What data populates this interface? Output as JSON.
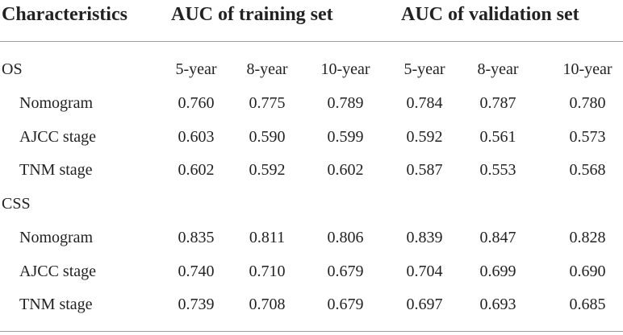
{
  "header": {
    "characteristics": "Characteristics",
    "training": "AUC of training set",
    "validation": "AUC of validation set"
  },
  "sections": [
    {
      "label": "OS",
      "years": [
        "5-year",
        "8-year",
        "10-year",
        "5-year",
        "8-year",
        "10-year"
      ],
      "rows": [
        {
          "label": "Nomogram",
          "values": [
            "0.760",
            "0.775",
            "0.789",
            "0.784",
            "0.787",
            "0.780"
          ]
        },
        {
          "label": "AJCC stage",
          "values": [
            "0.603",
            "0.590",
            "0.599",
            "0.592",
            "0.561",
            "0.573"
          ]
        },
        {
          "label": "TNM stage",
          "values": [
            "0.602",
            "0.592",
            "0.602",
            "0.587",
            "0.553",
            "0.568"
          ]
        }
      ]
    },
    {
      "label": "CSS",
      "rows": [
        {
          "label": "Nomogram",
          "values": [
            "0.835",
            "0.811",
            "0.806",
            "0.839",
            "0.847",
            "0.828"
          ]
        },
        {
          "label": "AJCC stage",
          "values": [
            "0.740",
            "0.710",
            "0.679",
            "0.704",
            "0.699",
            "0.690"
          ]
        },
        {
          "label": "TNM stage",
          "values": [
            "0.739",
            "0.708",
            "0.679",
            "0.697",
            "0.693",
            "0.685"
          ]
        }
      ]
    }
  ]
}
